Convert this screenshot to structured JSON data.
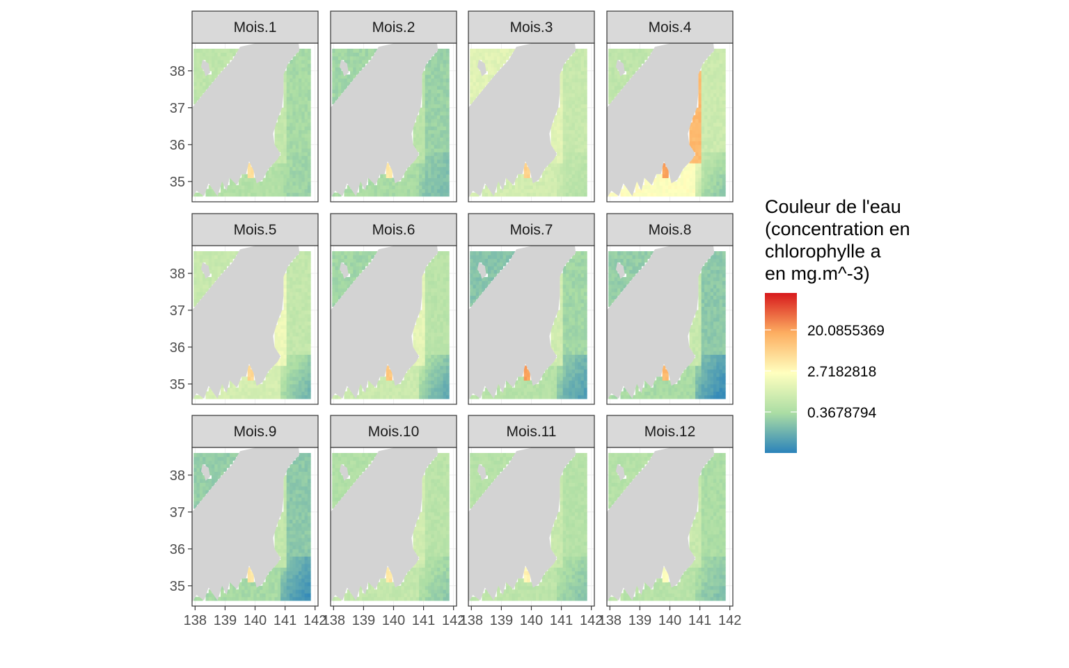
{
  "chart_data": {
    "type": "heatmap",
    "panels": [
      "Mois.1",
      "Mois.2",
      "Mois.3",
      "Mois.4",
      "Mois.5",
      "Mois.6",
      "Mois.7",
      "Mois.8",
      "Mois.9",
      "Mois.10",
      "Mois.11",
      "Mois.12"
    ],
    "x_ticks": [
      138,
      139,
      140,
      141,
      142
    ],
    "y_ticks": [
      35,
      36,
      37,
      38
    ],
    "xlim": [
      137.9,
      142.1
    ],
    "ylim": [
      34.45,
      38.75
    ],
    "grid": true,
    "legend": {
      "title_lines": [
        "Couleur de l'eau",
        "(concentration en",
        "chlorophylle a",
        "en mg.m^-3)"
      ],
      "labels": [
        "20.0855369",
        "2.7182818",
        "0.3678794"
      ],
      "label_log_values": [
        3,
        1,
        -1
      ],
      "log_range": [
        -3,
        4.8
      ],
      "placement": "right"
    },
    "colors": {
      "land": "#d3d3d3",
      "strip": "#d9d9d9",
      "scale": [
        "#2b83ba",
        "#abdda4",
        "#ffffbf",
        "#fdae61",
        "#d7191c"
      ]
    },
    "monthly_pattern": {
      "levels": [
        {
          "offshore": -1.1,
          "coastal": -0.5,
          "south": -1.3,
          "ne_basin": -0.6
        },
        {
          "offshore": -1.3,
          "coastal": -0.7,
          "south": -1.8,
          "ne_basin": -1.2
        },
        {
          "offshore": -0.4,
          "coastal": 0.2,
          "south": -0.8,
          "ne_basin": 0.2
        },
        {
          "offshore": -0.3,
          "coastal": 2.6,
          "south": -1.5,
          "ne_basin": -0.6
        },
        {
          "offshore": -0.5,
          "coastal": 0.5,
          "south": -1.9,
          "ne_basin": -0.4
        },
        {
          "offshore": -0.7,
          "coastal": 0.3,
          "south": -2.2,
          "ne_basin": -1.2
        },
        {
          "offshore": -1.2,
          "coastal": -0.2,
          "south": -2.4,
          "ne_basin": -1.6
        },
        {
          "offshore": -1.5,
          "coastal": -0.4,
          "south": -2.8,
          "ne_basin": -1.4
        },
        {
          "offshore": -1.5,
          "coastal": -0.5,
          "south": -2.7,
          "ne_basin": -1.4
        },
        {
          "offshore": -0.7,
          "coastal": -0.2,
          "south": -1.5,
          "ne_basin": -0.9
        },
        {
          "offshore": -0.8,
          "coastal": -0.4,
          "south": -1.6,
          "ne_basin": -0.8
        },
        {
          "offshore": -1.0,
          "coastal": -0.4,
          "south": -1.7,
          "ne_basin": -0.8
        }
      ],
      "bay_hotspot": [
        1.6,
        1.4,
        2.0,
        3.0,
        1.9,
        2.3,
        3.0,
        2.6,
        1.5,
        1.5,
        1.2,
        0.8
      ]
    }
  }
}
